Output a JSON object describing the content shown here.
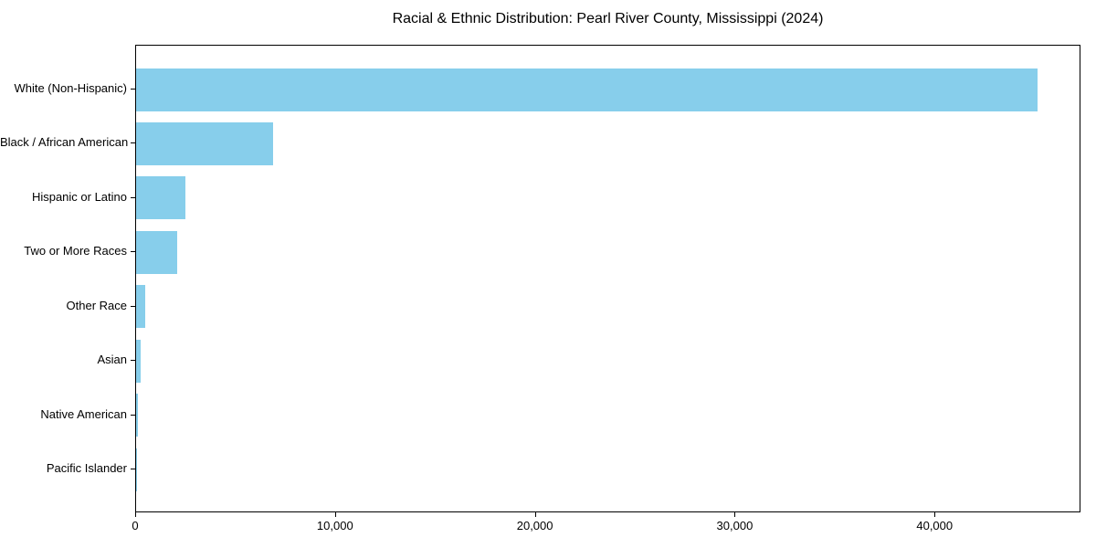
{
  "title": "Racial & Ethnic Distribution: Pearl River County, Mississippi (2024)",
  "colors": {
    "bar": "#87CEEB",
    "axis": "#000000",
    "background": "#FFFFFF",
    "text": "#000000"
  },
  "chart_data": {
    "type": "bar",
    "orientation": "horizontal",
    "title": "Racial & Ethnic Distribution: Pearl River County, Mississippi (2024)",
    "categories": [
      "White (Non-Hispanic)",
      "Black / African American",
      "Hispanic or Latino",
      "Two or More Races",
      "Other Race",
      "Asian",
      "Native American",
      "Pacific Islander"
    ],
    "values": [
      45100,
      6850,
      2470,
      2060,
      450,
      245,
      90,
      30
    ],
    "xlabel": "",
    "ylabel": "",
    "xlim": [
      0,
      47300
    ],
    "x_ticks": [
      0,
      10000,
      20000,
      30000,
      40000
    ],
    "x_tick_labels": [
      "0",
      "10,000",
      "20,000",
      "30,000",
      "40,000"
    ],
    "grid": false,
    "legend": null,
    "bar_color": "#87CEEB",
    "sorted": "descending"
  }
}
